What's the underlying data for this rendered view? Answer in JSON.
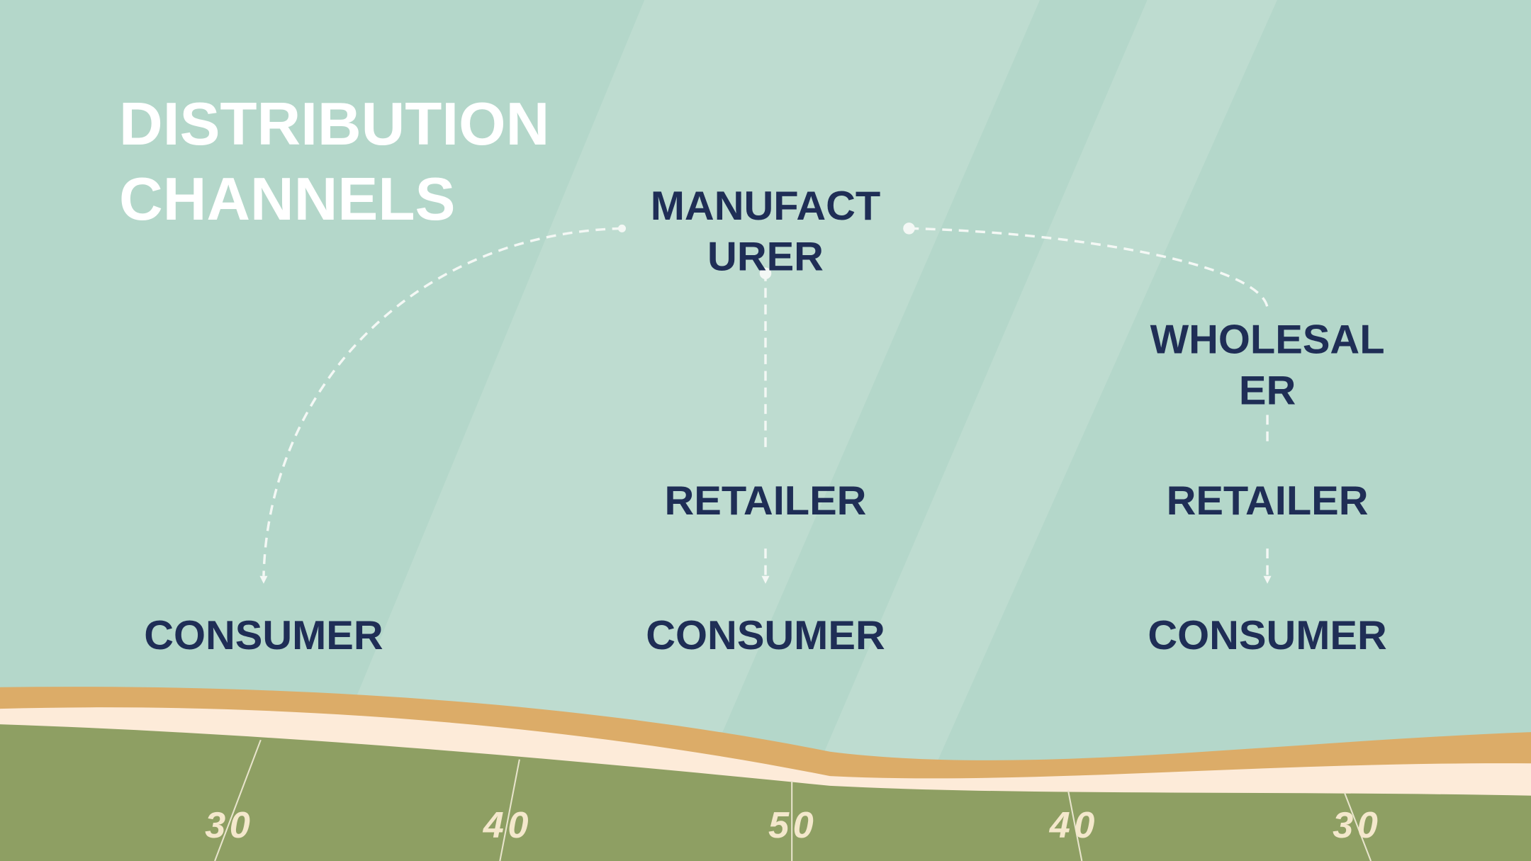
{
  "title": {
    "lines": [
      "DISTRIBUTION",
      "CHANNELS"
    ]
  },
  "nodes": [
    {
      "lines": [
        "MANUFACT",
        "URER"
      ]
    },
    {
      "lines": [
        "WHOLESAL",
        "ER"
      ]
    },
    {
      "lines": [
        "RETAILER"
      ]
    },
    {
      "lines": [
        "RETAILER"
      ]
    },
    {
      "lines": [
        "CONSUMER"
      ]
    },
    {
      "lines": [
        "CONSUMER"
      ]
    },
    {
      "lines": [
        "CONSUMER"
      ]
    }
  ],
  "field_numbers": [
    30,
    40,
    50,
    40,
    30
  ]
}
